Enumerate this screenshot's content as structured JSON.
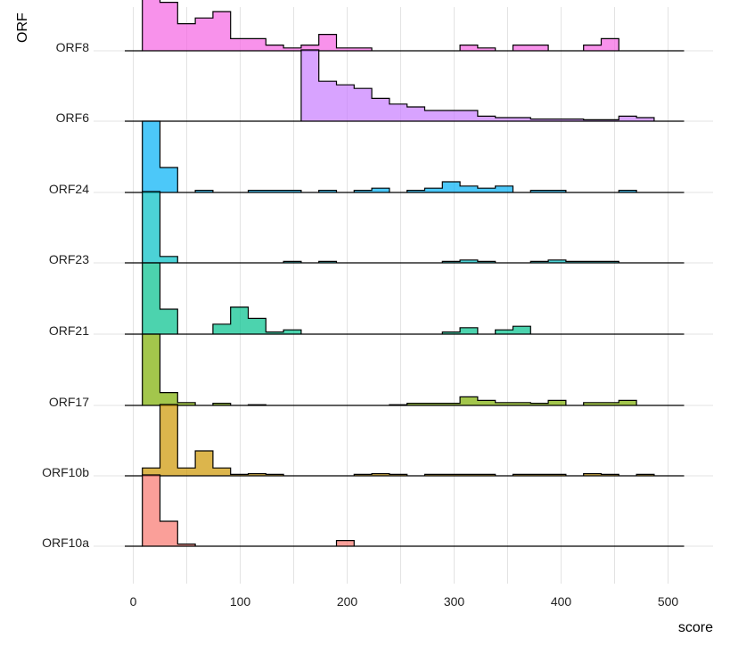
{
  "chart_data": {
    "type": "histogram-ridgeline",
    "xlabel": "score",
    "ylabel": "ORF",
    "xlim": [
      -12,
      540
    ],
    "x_ticks": [
      0,
      100,
      200,
      300,
      400,
      500
    ],
    "x_tick_labels": [
      "0",
      "100",
      "200",
      "300",
      "400",
      "500"
    ],
    "grid": true,
    "legend": "none",
    "categories": [
      "ORF8",
      "ORF6",
      "ORF24",
      "ORF23",
      "ORF21",
      "ORF17",
      "ORF10b",
      "ORF10a"
    ],
    "series": [
      {
        "name": "ORF8",
        "color": "#F564E3",
        "edges": [
          8.5,
          25,
          41.5,
          58,
          74.5,
          91,
          107.5,
          124,
          140.5,
          157,
          173.5,
          190,
          206.5,
          223,
          239.5,
          256,
          272.5,
          289,
          305.5,
          322,
          338.5,
          355,
          371.5,
          388,
          404.5,
          421,
          437.5,
          454,
          470.5,
          487,
          503.5,
          515
        ],
        "values": [
          1.0,
          0.68,
          0.38,
          0.46,
          0.55,
          0.17,
          0.17,
          0.08,
          0.04,
          0.08,
          0.23,
          0.04,
          0.04,
          0,
          0,
          0,
          0,
          0,
          0.08,
          0.04,
          0,
          0.08,
          0.08,
          0,
          0,
          0.08,
          0.17,
          0,
          0,
          0,
          0
        ]
      },
      {
        "name": "ORF6",
        "color": "#C77CFF",
        "edges": [
          8.5,
          25,
          41.5,
          58,
          74.5,
          91,
          107.5,
          124,
          140.5,
          157,
          173.5,
          190,
          206.5,
          223,
          239.5,
          256,
          272.5,
          289,
          305.5,
          322,
          338.5,
          355,
          371.5,
          388,
          404.5,
          421,
          437.5,
          454,
          470.5,
          487,
          503.5,
          515
        ],
        "values": [
          0,
          0,
          0,
          0,
          0,
          0,
          0,
          0,
          0,
          1.0,
          0.56,
          0.51,
          0.46,
          0.32,
          0.24,
          0.2,
          0.15,
          0.15,
          0.15,
          0.07,
          0.05,
          0.05,
          0.03,
          0.03,
          0.03,
          0.02,
          0.02,
          0.07,
          0.05,
          0,
          0
        ]
      },
      {
        "name": "ORF24",
        "color": "#00B0F6",
        "edges": [
          8.5,
          25,
          41.5,
          58,
          74.5,
          91,
          107.5,
          124,
          140.5,
          157,
          173.5,
          190,
          206.5,
          223,
          239.5,
          256,
          272.5,
          289,
          305.5,
          322,
          338.5,
          355,
          371.5,
          388,
          404.5,
          421,
          437.5,
          454,
          470.5,
          487,
          503.5,
          515
        ],
        "values": [
          1.0,
          0.35,
          0,
          0.03,
          0,
          0,
          0.03,
          0.03,
          0.03,
          0,
          0.03,
          0,
          0.03,
          0.06,
          0,
          0.03,
          0.06,
          0.15,
          0.09,
          0.06,
          0.09,
          0,
          0.03,
          0.03,
          0,
          0,
          0,
          0.03,
          0,
          0,
          0
        ]
      },
      {
        "name": "ORF23",
        "color": "#00BFC4",
        "edges": [
          8.5,
          25,
          41.5,
          58,
          74.5,
          91,
          107.5,
          124,
          140.5,
          157,
          173.5,
          190,
          206.5,
          223,
          239.5,
          256,
          272.5,
          289,
          305.5,
          322,
          338.5,
          355,
          371.5,
          388,
          404.5,
          421,
          437.5,
          454,
          470.5,
          487,
          503.5,
          515
        ],
        "values": [
          1.0,
          0.09,
          0,
          0,
          0,
          0,
          0,
          0,
          0.02,
          0,
          0.02,
          0,
          0,
          0,
          0,
          0,
          0,
          0.02,
          0.04,
          0.02,
          0,
          0,
          0.02,
          0.04,
          0.02,
          0.02,
          0.02,
          0,
          0,
          0,
          0
        ]
      },
      {
        "name": "ORF21",
        "color": "#00C08B",
        "edges": [
          8.5,
          25,
          41.5,
          58,
          74.5,
          91,
          107.5,
          124,
          140.5,
          157,
          173.5,
          190,
          206.5,
          223,
          239.5,
          256,
          272.5,
          289,
          305.5,
          322,
          338.5,
          355,
          371.5,
          388,
          404.5,
          421,
          437.5,
          454,
          470.5,
          487,
          503.5,
          515
        ],
        "values": [
          1.0,
          0.35,
          0,
          0,
          0.14,
          0.38,
          0.22,
          0.03,
          0.06,
          0,
          0,
          0,
          0,
          0,
          0,
          0,
          0,
          0.03,
          0.09,
          0,
          0.06,
          0.11,
          0,
          0,
          0,
          0,
          0,
          0,
          0,
          0,
          0
        ]
      },
      {
        "name": "ORF17",
        "color": "#7CAE00",
        "edges": [
          8.5,
          25,
          41.5,
          58,
          74.5,
          91,
          107.5,
          124,
          140.5,
          157,
          173.5,
          190,
          206.5,
          223,
          239.5,
          256,
          272.5,
          289,
          305.5,
          322,
          338.5,
          355,
          371.5,
          388,
          404.5,
          421,
          437.5,
          454,
          470.5,
          487,
          503.5,
          515
        ],
        "values": [
          1.0,
          0.18,
          0.04,
          0,
          0.03,
          0,
          0.01,
          0,
          0,
          0,
          0,
          0,
          0,
          0,
          0.01,
          0.03,
          0.03,
          0.03,
          0.12,
          0.07,
          0.04,
          0.04,
          0.03,
          0.07,
          0,
          0.04,
          0.04,
          0.07,
          0,
          0,
          0
        ]
      },
      {
        "name": "ORF10b",
        "color": "#CD9600",
        "edges": [
          8.5,
          25,
          41.5,
          58,
          74.5,
          91,
          107.5,
          124,
          140.5,
          157,
          173.5,
          190,
          206.5,
          223,
          239.5,
          256,
          272.5,
          289,
          305.5,
          322,
          338.5,
          355,
          371.5,
          388,
          404.5,
          421,
          437.5,
          454,
          470.5,
          487,
          503.5,
          515
        ],
        "values": [
          0.11,
          1.0,
          0.11,
          0.35,
          0.11,
          0.02,
          0.03,
          0.02,
          0,
          0,
          0,
          0,
          0.02,
          0.03,
          0.02,
          0,
          0.02,
          0.02,
          0.02,
          0.02,
          0,
          0.02,
          0.02,
          0.02,
          0,
          0.03,
          0.02,
          0,
          0.02,
          0,
          0
        ]
      },
      {
        "name": "ORF10a",
        "color": "#F8766D",
        "edges": [
          8.5,
          25,
          41.5,
          58,
          74.5,
          91,
          107.5,
          124,
          140.5,
          157,
          173.5,
          190,
          206.5,
          223,
          239.5,
          256,
          272.5,
          289,
          305.5,
          322,
          338.5,
          355,
          371.5,
          388,
          404.5,
          421,
          437.5,
          454,
          470.5,
          487,
          503.5,
          515
        ],
        "values": [
          1.0,
          0.35,
          0.03,
          0,
          0,
          0,
          0,
          0,
          0,
          0,
          0,
          0.08,
          0,
          0,
          0,
          0,
          0,
          0,
          0,
          0,
          0,
          0,
          0,
          0,
          0,
          0,
          0,
          0,
          0,
          0,
          0
        ]
      }
    ]
  }
}
